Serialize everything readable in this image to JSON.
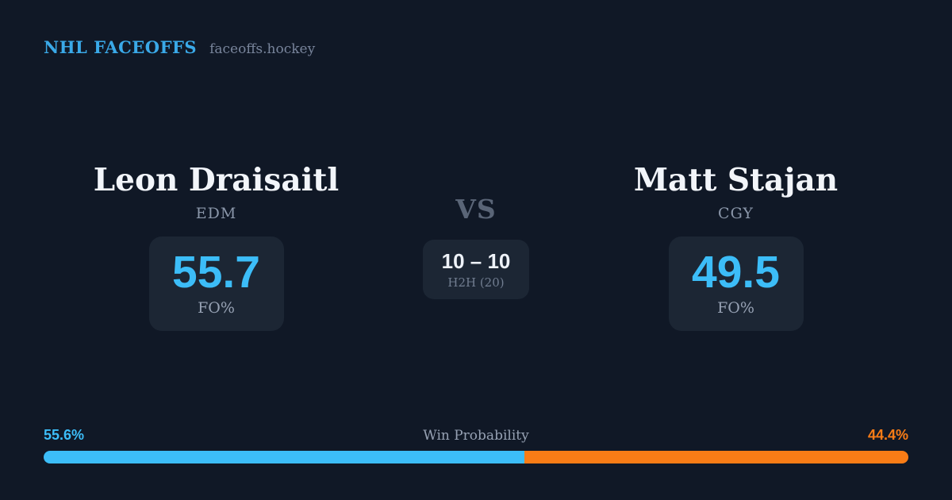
{
  "header": {
    "brand": "NHL FACEOFFS",
    "site": "faceoffs.hockey"
  },
  "matchup": {
    "vs_label": "VS",
    "h2h": {
      "score": "10 – 10",
      "label": "H2H (20)"
    },
    "players": [
      {
        "name": "Leon Draisaitl",
        "team": "EDM",
        "fo_pct": "55.7",
        "stat_label": "FO%"
      },
      {
        "name": "Matt Stajan",
        "team": "CGY",
        "fo_pct": "49.5",
        "stat_label": "FO%"
      }
    ]
  },
  "win_probability": {
    "title": "Win Probability",
    "left_pct_label": "55.6%",
    "right_pct_label": "44.4%",
    "left_value": 55.6,
    "right_value": 44.4
  },
  "colors": {
    "background": "#101826",
    "card": "#1c2634",
    "accent_blue": "#3cbdf8",
    "accent_orange": "#f97c16",
    "brand_blue": "#3aa9e8",
    "text_primary": "#f2f5fa",
    "text_muted": "#8a96a9"
  }
}
